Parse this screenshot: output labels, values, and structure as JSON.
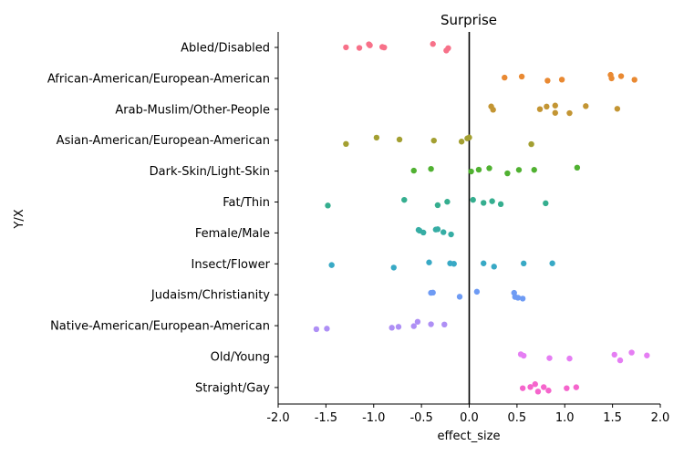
{
  "chart_data": {
    "type": "scatter",
    "title": "Surprise",
    "xlabel": "effect_size",
    "ylabel": "Y/X",
    "xlim": [
      -2.0,
      2.0
    ],
    "xticks": [
      "-2.0",
      "-1.5",
      "-1.0",
      "-0.5",
      "0.0",
      "0.5",
      "1.0",
      "1.5",
      "2.0"
    ],
    "vline_x": 0,
    "grid": false,
    "categories": [
      "Abled/Disabled",
      "African-American/European-American",
      "Arab-Muslim/Other-People",
      "Asian-American/European-American",
      "Dark-Skin/Light-Skin",
      "Fat/Thin",
      "Female/Male",
      "Insect/Flower",
      "Judaism/Christianity",
      "Native-American/European-American",
      "Old/Young",
      "Straight/Gay"
    ],
    "colors": [
      "#f77189",
      "#e98932",
      "#c39533",
      "#a39f31",
      "#50b131",
      "#35ae8f",
      "#36ada4",
      "#38a9c5",
      "#6e9bf4",
      "#ae8ff5",
      "#e57ef3",
      "#f565cc"
    ],
    "series": [
      {
        "values": [
          -1.29,
          -1.15,
          -1.05,
          -1.04,
          -0.91,
          -0.89,
          -0.38,
          -0.24,
          -0.22
        ]
      },
      {
        "values": [
          0.37,
          0.55,
          0.82,
          0.97,
          1.48,
          1.49,
          1.59,
          1.73
        ]
      },
      {
        "values": [
          0.23,
          0.25,
          0.74,
          0.81,
          0.9,
          0.9,
          1.05,
          1.22,
          1.55
        ]
      },
      {
        "values": [
          -1.29,
          -0.97,
          -0.73,
          -0.37,
          -0.08,
          -0.02,
          0.0,
          0.65
        ]
      },
      {
        "values": [
          -0.58,
          -0.4,
          0.02,
          0.1,
          0.21,
          0.4,
          0.52,
          0.68,
          1.13
        ]
      },
      {
        "values": [
          -1.48,
          -0.68,
          -0.33,
          -0.23,
          0.04,
          0.15,
          0.24,
          0.33,
          0.8
        ]
      },
      {
        "values": [
          -0.53,
          -0.52,
          -0.48,
          -0.35,
          -0.33,
          -0.27,
          -0.19
        ]
      },
      {
        "values": [
          -1.44,
          -0.79,
          -0.42,
          -0.2,
          -0.16,
          0.15,
          0.26,
          0.57,
          0.87
        ]
      },
      {
        "values": [
          -0.4,
          -0.38,
          -0.1,
          0.08,
          0.47,
          0.48,
          0.51,
          0.56
        ]
      },
      {
        "values": [
          -1.6,
          -1.49,
          -0.81,
          -0.74,
          -0.58,
          -0.54,
          -0.4,
          -0.26
        ]
      },
      {
        "values": [
          0.54,
          0.57,
          0.84,
          1.05,
          1.52,
          1.58,
          1.7,
          1.86
        ]
      },
      {
        "values": [
          0.56,
          0.64,
          0.69,
          0.72,
          0.78,
          0.83,
          1.02,
          1.12
        ]
      }
    ]
  }
}
